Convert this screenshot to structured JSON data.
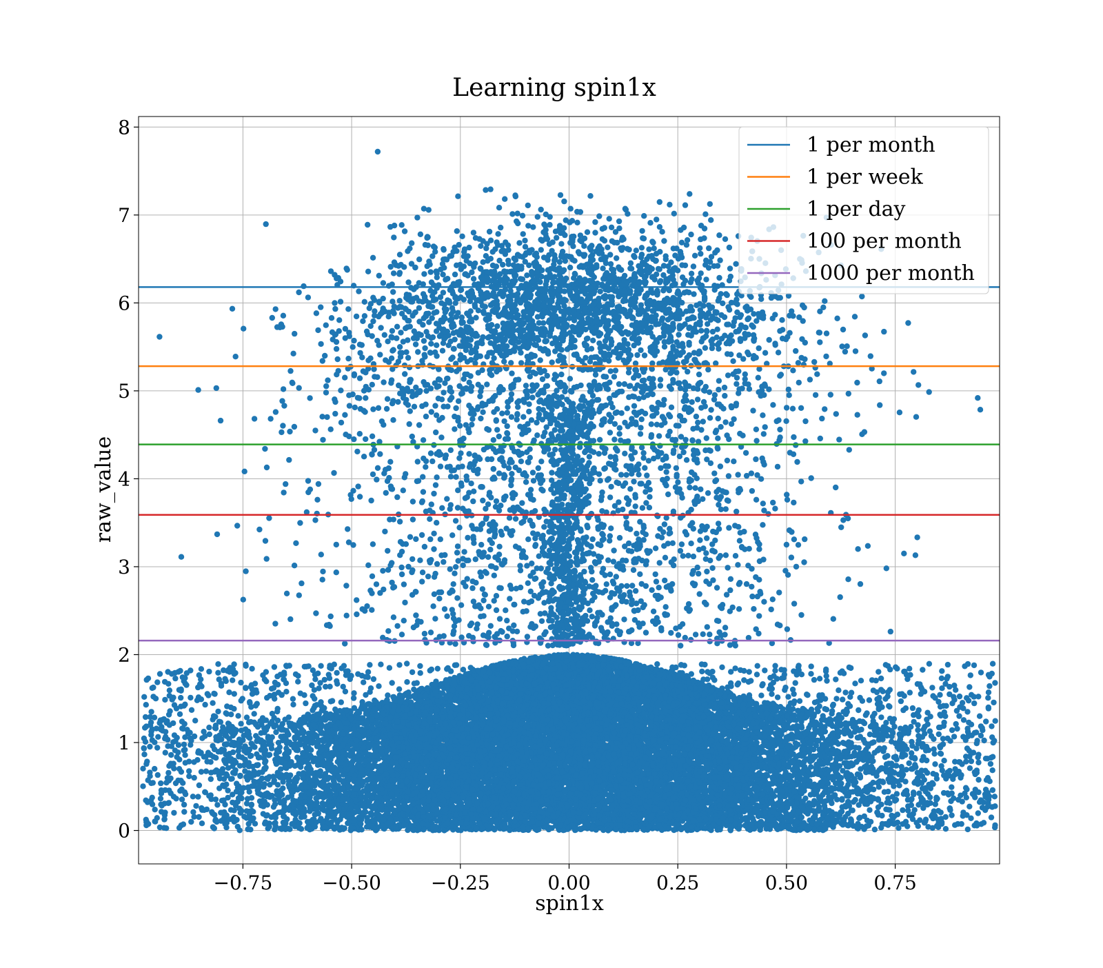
{
  "chart_data": {
    "type": "scatter",
    "title": "Learning spin1x",
    "xlabel": "spin1x",
    "ylabel": "raw_value",
    "xlim": [
      -0.99,
      0.99
    ],
    "ylim": [
      -0.38,
      8.12
    ],
    "xticks": [
      -0.75,
      -0.5,
      -0.25,
      0.0,
      0.25,
      0.5,
      0.75
    ],
    "xtick_labels": [
      "−0.75",
      "−0.50",
      "−0.25",
      "0.00",
      "0.25",
      "0.50",
      "0.75"
    ],
    "yticks": [
      0,
      1,
      2,
      3,
      4,
      5,
      6,
      7,
      8
    ],
    "ytick_labels": [
      "0",
      "1",
      "2",
      "3",
      "4",
      "5",
      "6",
      "7",
      "8"
    ],
    "grid": true,
    "legend_placement": "top-right",
    "point_color": "#1f77b4",
    "scatter_series": {
      "description_note": "",
      "approx_point_count": 30000,
      "dense_region": {
        "x_range": [
          -0.99,
          0.99
        ],
        "y_range": [
          0,
          2
        ],
        "center_x": 0.0
      },
      "upper_cluster": {
        "center_x": 0.0,
        "center_y": 6.0
      },
      "max_point": {
        "x": -0.44,
        "y": 7.72
      }
    },
    "reference_lines": [
      {
        "name": "1 per month",
        "y": 6.18,
        "color": "#1f77b4"
      },
      {
        "name": "1 per week",
        "y": 5.28,
        "color": "#ff7f0e"
      },
      {
        "name": "1 per day",
        "y": 4.39,
        "color": "#2ca02c"
      },
      {
        "name": "100 per month",
        "y": 3.59,
        "color": "#d62728"
      },
      {
        "name": "1000 per month",
        "y": 2.16,
        "color": "#9467bd"
      }
    ]
  }
}
